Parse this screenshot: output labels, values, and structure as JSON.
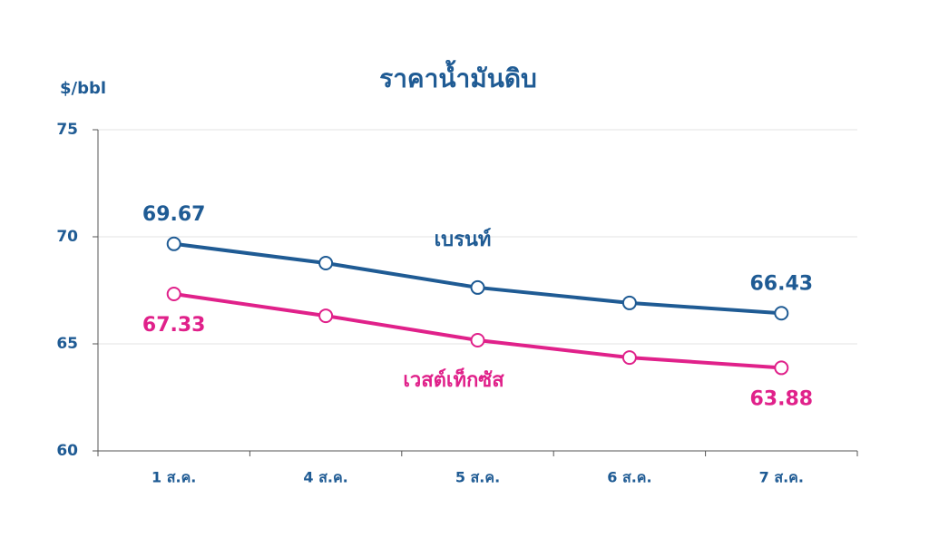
{
  "chart_data": {
    "type": "line",
    "title": "ราคาน้ำมันดิบ",
    "y_label": "$/bbl",
    "categories": [
      "1 ส.ค.",
      "4 ส.ค.",
      "5 ส.ค.",
      "6 ส.ค.",
      "7 ส.ค."
    ],
    "series": [
      {
        "name": "เบรนท์",
        "color": "#1f5b94",
        "values": [
          69.67,
          68.77,
          67.63,
          66.91,
          66.43
        ],
        "value_labels": [
          "69.67",
          null,
          null,
          null,
          "66.43"
        ]
      },
      {
        "name": "เวสต์เท็กซัส",
        "color": "#e0218a",
        "values": [
          67.33,
          66.31,
          65.17,
          64.36,
          63.88
        ],
        "value_labels": [
          "67.33",
          null,
          null,
          null,
          "63.88"
        ]
      }
    ],
    "ylim": [
      60,
      75
    ],
    "yticks": [
      60,
      65,
      70,
      75
    ],
    "grid": true
  }
}
